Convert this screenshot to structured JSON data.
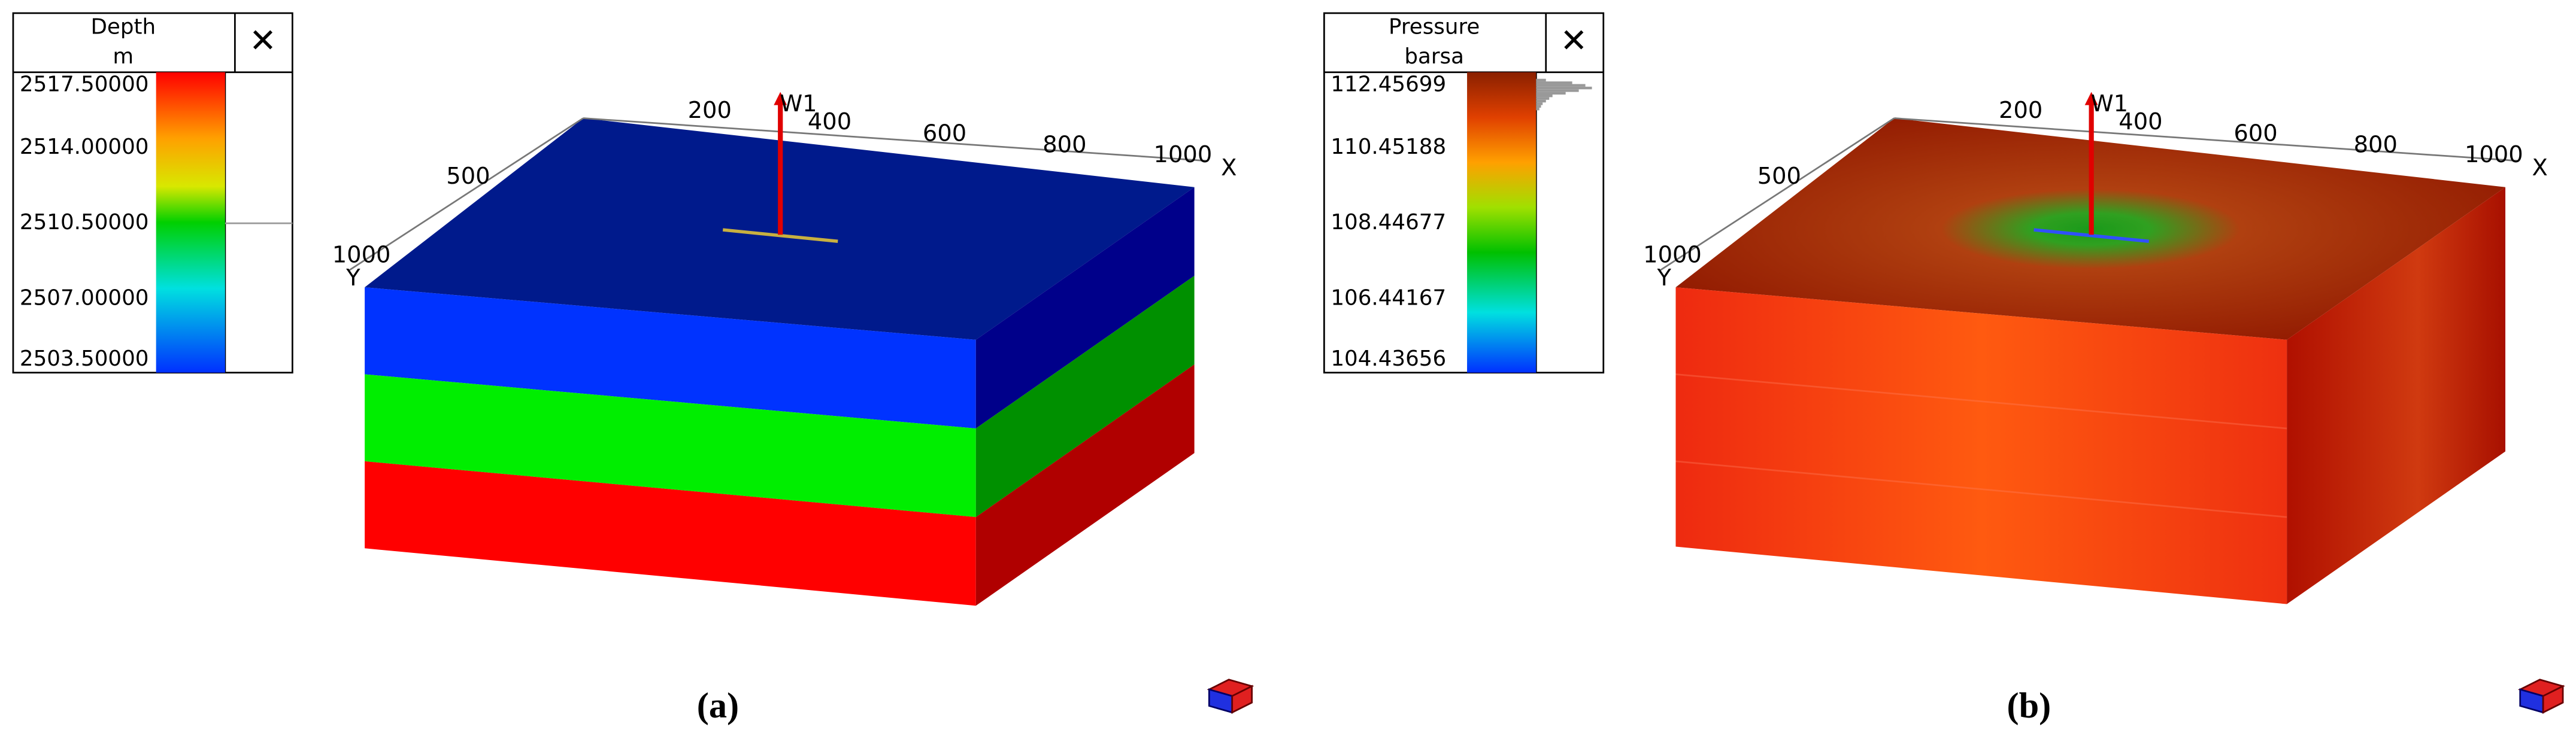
{
  "panels": [
    {
      "legend": {
        "title": "Depth",
        "unit": "m",
        "close": "✕",
        "ticks": [
          "2517.50000",
          "2514.00000",
          "2510.50000",
          "2507.00000",
          "2503.50000"
        ]
      },
      "x_ticks": [
        "200",
        "400",
        "600",
        "800",
        "1000"
      ],
      "x_label": "X",
      "y_ticks": [
        "500",
        "1000"
      ],
      "y_label": "Y",
      "well": "W1",
      "caption": "(a)"
    },
    {
      "legend": {
        "title": "Pressure",
        "unit": "barsa",
        "close": "✕",
        "ticks": [
          "112.45699",
          "110.45188",
          "108.44677",
          "106.44167",
          "104.43656"
        ]
      },
      "x_ticks": [
        "200",
        "400",
        "600",
        "800",
        "1000"
      ],
      "x_label": "X",
      "y_ticks": [
        "500",
        "1000"
      ],
      "y_label": "Y",
      "well": "W1",
      "caption": "(b)"
    }
  ]
}
